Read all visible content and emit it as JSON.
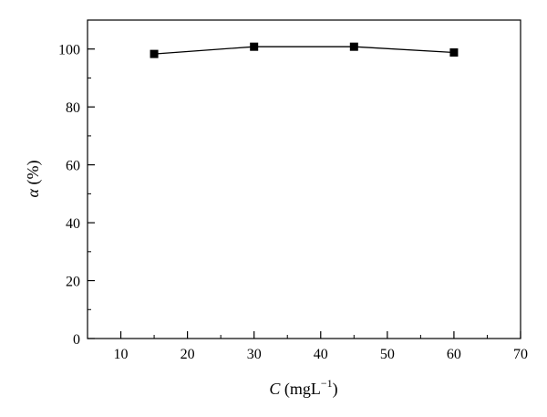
{
  "chart_data": {
    "type": "line",
    "xlabel": {
      "symbol": "C",
      "unit_prefix": " (mgL",
      "unit_exponent": "−1",
      "unit_suffix": ")"
    },
    "ylabel": {
      "symbol": "α",
      "unit": " (%)"
    },
    "xlim": [
      5,
      70
    ],
    "ylim": [
      0,
      110
    ],
    "xticks": [
      10,
      20,
      30,
      40,
      50,
      60,
      70
    ],
    "yticks": [
      0,
      20,
      40,
      60,
      80,
      100
    ],
    "xtick_labels": [
      "10",
      "20",
      "30",
      "40",
      "50",
      "60",
      "70"
    ],
    "ytick_labels": [
      "0",
      "20",
      "40",
      "60",
      "80",
      "100"
    ],
    "grid": false,
    "series": [
      {
        "marker": "square",
        "color": "#000000",
        "x": [
          15,
          30,
          45,
          60
        ],
        "y": [
          98.3,
          100.8,
          100.8,
          98.8
        ]
      }
    ]
  }
}
